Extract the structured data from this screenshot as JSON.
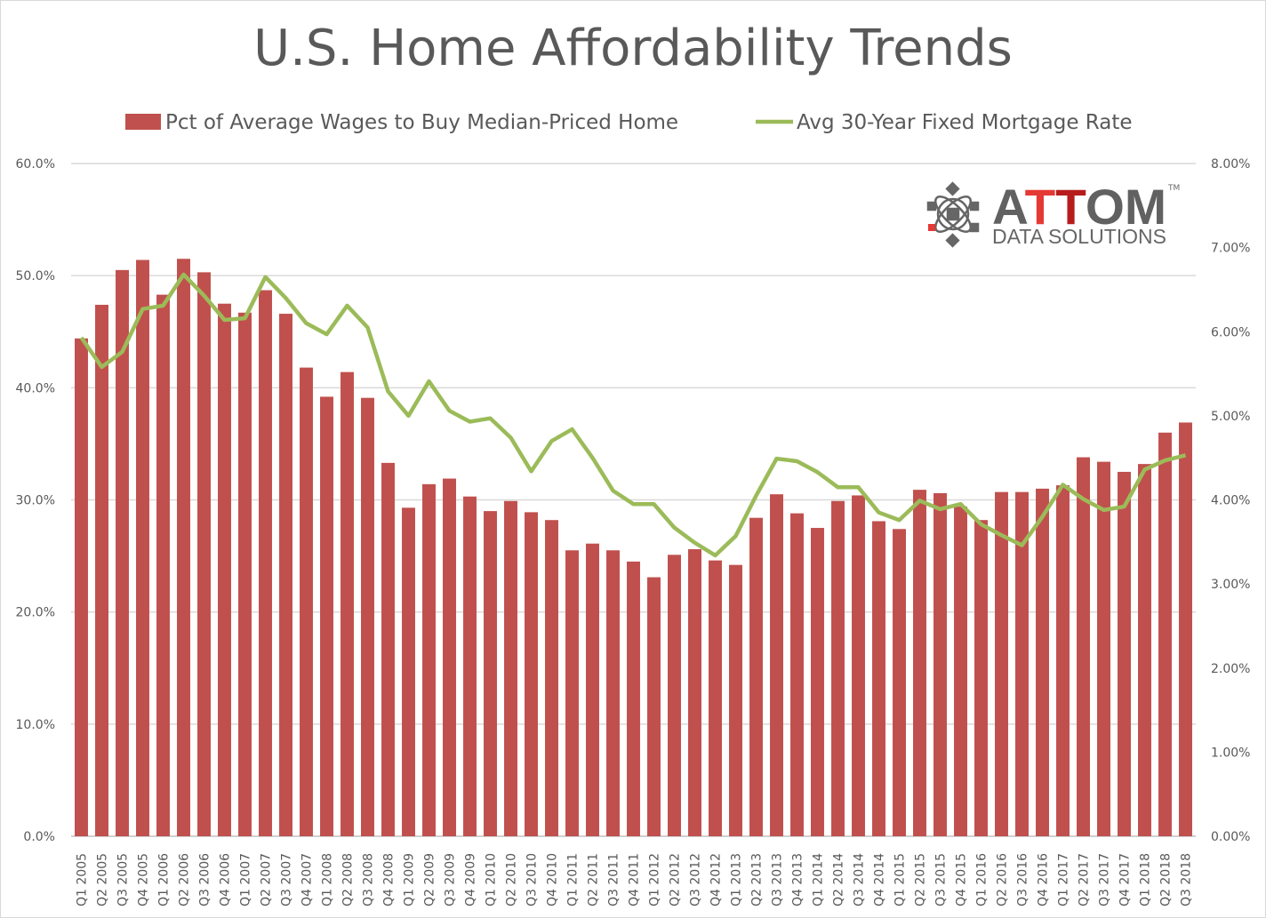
{
  "chart_data": {
    "type": "bar",
    "title": "U.S. Home Affordability Trends",
    "logo": {
      "text": "ATTOM",
      "subtext": "DATA SOLUTIONS",
      "mark": "TM"
    },
    "categories": [
      "Q1 2005",
      "Q2 2005",
      "Q3 2005",
      "Q4 2005",
      "Q1 2006",
      "Q2 2006",
      "Q3 2006",
      "Q4 2006",
      "Q1 2007",
      "Q2 2007",
      "Q3 2007",
      "Q4 2007",
      "Q1 2008",
      "Q2 2008",
      "Q3 2008",
      "Q4 2008",
      "Q1 2009",
      "Q2 2009",
      "Q3 2009",
      "Q4 2009",
      "Q1 2010",
      "Q2 2010",
      "Q3 2010",
      "Q4 2010",
      "Q1 2011",
      "Q2 2011",
      "Q3 2011",
      "Q4 2011",
      "Q1 2012",
      "Q2 2012",
      "Q3 2012",
      "Q4 2012",
      "Q1 2013",
      "Q2 2013",
      "Q3 2013",
      "Q4 2013",
      "Q1 2014",
      "Q2 2014",
      "Q3 2014",
      "Q4 2014",
      "Q1 2015",
      "Q2 2015",
      "Q3 2015",
      "Q4 2015",
      "Q1 2016",
      "Q2 2016",
      "Q3 2016",
      "Q4 2016",
      "Q1 2017",
      "Q2 2017",
      "Q3 2017",
      "Q4 2017",
      "Q1 2018",
      "Q2 2018",
      "Q3 2018"
    ],
    "series": [
      {
        "name": "Pct of Average Wages to Buy Median-Priced Home",
        "type": "bar",
        "axis": "left",
        "color": "#c0504d",
        "values": [
          44.4,
          47.4,
          50.5,
          51.4,
          48.3,
          51.5,
          50.3,
          47.5,
          46.7,
          48.7,
          46.6,
          41.8,
          39.2,
          41.4,
          39.1,
          33.3,
          29.3,
          31.4,
          31.9,
          30.3,
          29.0,
          29.9,
          28.9,
          28.2,
          25.5,
          26.1,
          25.5,
          24.5,
          23.1,
          25.1,
          25.6,
          24.6,
          24.2,
          28.4,
          30.5,
          28.8,
          27.5,
          29.9,
          30.4,
          28.1,
          27.4,
          30.9,
          30.6,
          29.4,
          28.2,
          30.7,
          30.7,
          31.0,
          31.3,
          33.8,
          33.4,
          32.5,
          33.2,
          36.0,
          36.9
        ]
      },
      {
        "name": "Avg 30-Year Fixed Mortgage Rate",
        "type": "line",
        "axis": "right",
        "color": "#9bbb59",
        "values": [
          5.93,
          5.58,
          5.76,
          6.27,
          6.31,
          6.68,
          6.43,
          6.14,
          6.16,
          6.65,
          6.4,
          6.1,
          5.97,
          6.31,
          6.05,
          5.29,
          5.0,
          5.41,
          5.06,
          4.93,
          4.97,
          4.74,
          4.34,
          4.7,
          4.84,
          4.5,
          4.11,
          3.95,
          3.95,
          3.67,
          3.49,
          3.34,
          3.57,
          4.05,
          4.49,
          4.46,
          4.33,
          4.15,
          4.15,
          3.85,
          3.76,
          3.99,
          3.89,
          3.95,
          3.71,
          3.58,
          3.46,
          3.8,
          4.18,
          4.01,
          3.88,
          3.92,
          4.36,
          4.47,
          4.53
        ]
      }
    ],
    "left_axis": {
      "range": [
        0,
        60
      ],
      "ticks": [
        "0.0%",
        "10.0%",
        "20.0%",
        "30.0%",
        "40.0%",
        "50.0%",
        "60.0%"
      ]
    },
    "right_axis": {
      "range": [
        0,
        8
      ],
      "ticks": [
        "0.00%",
        "1.00%",
        "2.00%",
        "3.00%",
        "4.00%",
        "5.00%",
        "6.00%",
        "7.00%",
        "8.00%"
      ]
    },
    "grid": true,
    "legend_position": "top"
  }
}
